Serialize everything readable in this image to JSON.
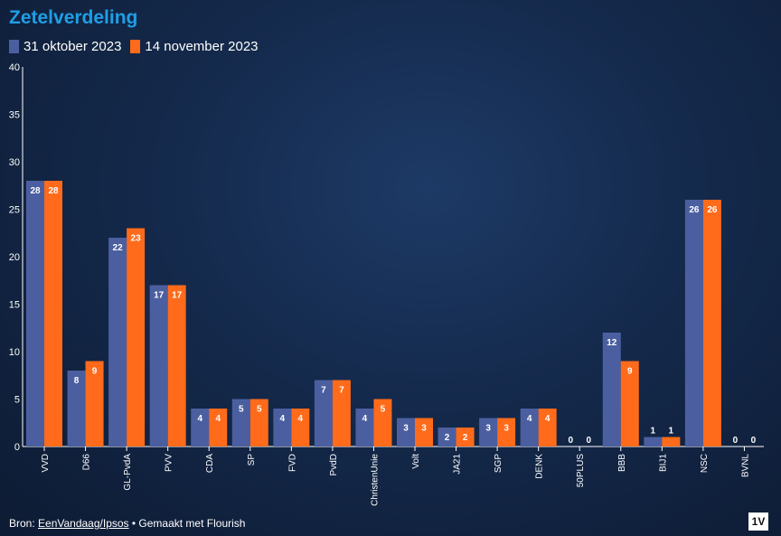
{
  "chart_data": {
    "type": "bar",
    "title": "Zetelverdeling",
    "categories": [
      "VVD",
      "D66",
      "GL-PvdA",
      "PVV",
      "CDA",
      "SP",
      "FVD",
      "PvdD",
      "ChristenUnie",
      "Volt",
      "JA21",
      "SGP",
      "DENK",
      "50PLUS",
      "BBB",
      "BIJ1",
      "NSC",
      "BVNL"
    ],
    "series": [
      {
        "name": "31 oktober 2023",
        "color": "#4b5fa0",
        "values": [
          28,
          8,
          22,
          17,
          4,
          5,
          4,
          7,
          4,
          3,
          2,
          3,
          4,
          0,
          12,
          1,
          26,
          0
        ]
      },
      {
        "name": "14 november 2023",
        "color": "#ff6b1a",
        "values": [
          28,
          9,
          23,
          17,
          4,
          5,
          4,
          7,
          5,
          3,
          2,
          3,
          4,
          0,
          9,
          1,
          26,
          0
        ]
      }
    ],
    "ylim": [
      0,
      40
    ],
    "yticks": [
      0,
      5,
      10,
      15,
      20,
      25,
      30,
      35,
      40
    ],
    "xlabel": "",
    "ylabel": "",
    "grid": false,
    "legend": "top-left"
  },
  "footer": {
    "prefix": "Bron: ",
    "source": "EenVandaag/Ipsos",
    "suffix": " • Gemaakt met Flourish"
  },
  "logo": "1V"
}
